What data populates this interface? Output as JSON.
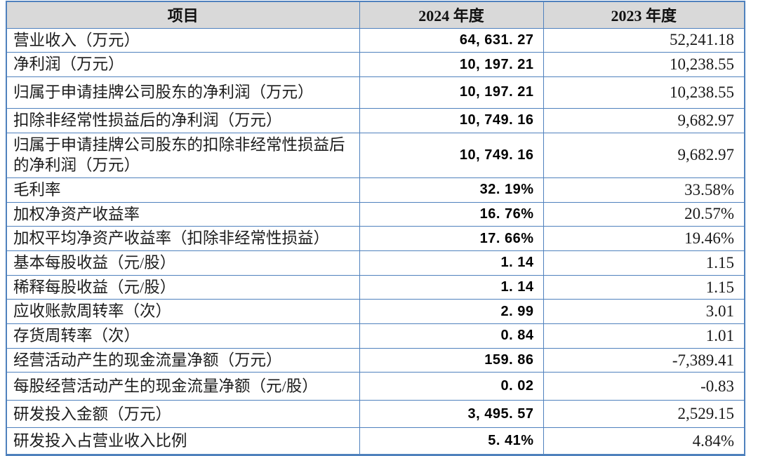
{
  "colors": {
    "border": "#4f81bd",
    "header_bg": "#d9d9d9",
    "text": "#1a1a1a"
  },
  "table": {
    "columns": [
      "项目",
      "2024 年度",
      "2023 年度"
    ],
    "rows": [
      {
        "item": "营业收入（万元）",
        "v2024": "64, 631. 27",
        "v2023": "52,241.18"
      },
      {
        "item": "净利润（万元）",
        "v2024": "10, 197. 21",
        "v2023": "10,238.55"
      },
      {
        "item": "归属于申请挂牌公司股东的净利润（万元）",
        "v2024": "10, 197. 21",
        "v2023": "10,238.55"
      },
      {
        "item": "扣除非经常性损益后的净利润（万元）",
        "v2024": "10, 749. 16",
        "v2023": "9,682.97"
      },
      {
        "item": "归属于申请挂牌公司股东的扣除非经常性损益后的净利润（万元）",
        "v2024": "10, 749. 16",
        "v2023": "9,682.97"
      },
      {
        "item": "毛利率",
        "v2024": "32. 19%",
        "v2023": "33.58%"
      },
      {
        "item": "加权净资产收益率",
        "v2024": "16. 76%",
        "v2023": "20.57%"
      },
      {
        "item": "加权平均净资产收益率（扣除非经常性损益）",
        "v2024": "17. 66%",
        "v2023": "19.46%"
      },
      {
        "item": "基本每股收益（元/股）",
        "v2024": "1. 14",
        "v2023": "1.15"
      },
      {
        "item": "稀释每股收益（元/股）",
        "v2024": "1. 14",
        "v2023": "1.15"
      },
      {
        "item": "应收账款周转率（次）",
        "v2024": "2. 99",
        "v2023": "3.01"
      },
      {
        "item": "存货周转率（次）",
        "v2024": "0. 84",
        "v2023": "1.01"
      },
      {
        "item": "经营活动产生的现金流量净额（万元）",
        "v2024": "159. 86",
        "v2023": "-7,389.41"
      },
      {
        "item": "每股经营活动产生的现金流量净额（元/股）",
        "v2024": "0. 02",
        "v2023": "-0.83"
      },
      {
        "item": "研发投入金额（万元）",
        "v2024": "3, 495. 57",
        "v2023": "2,529.15"
      },
      {
        "item": "研发投入占营业收入比例",
        "v2024": "5. 41%",
        "v2023": "4.84%"
      }
    ]
  }
}
